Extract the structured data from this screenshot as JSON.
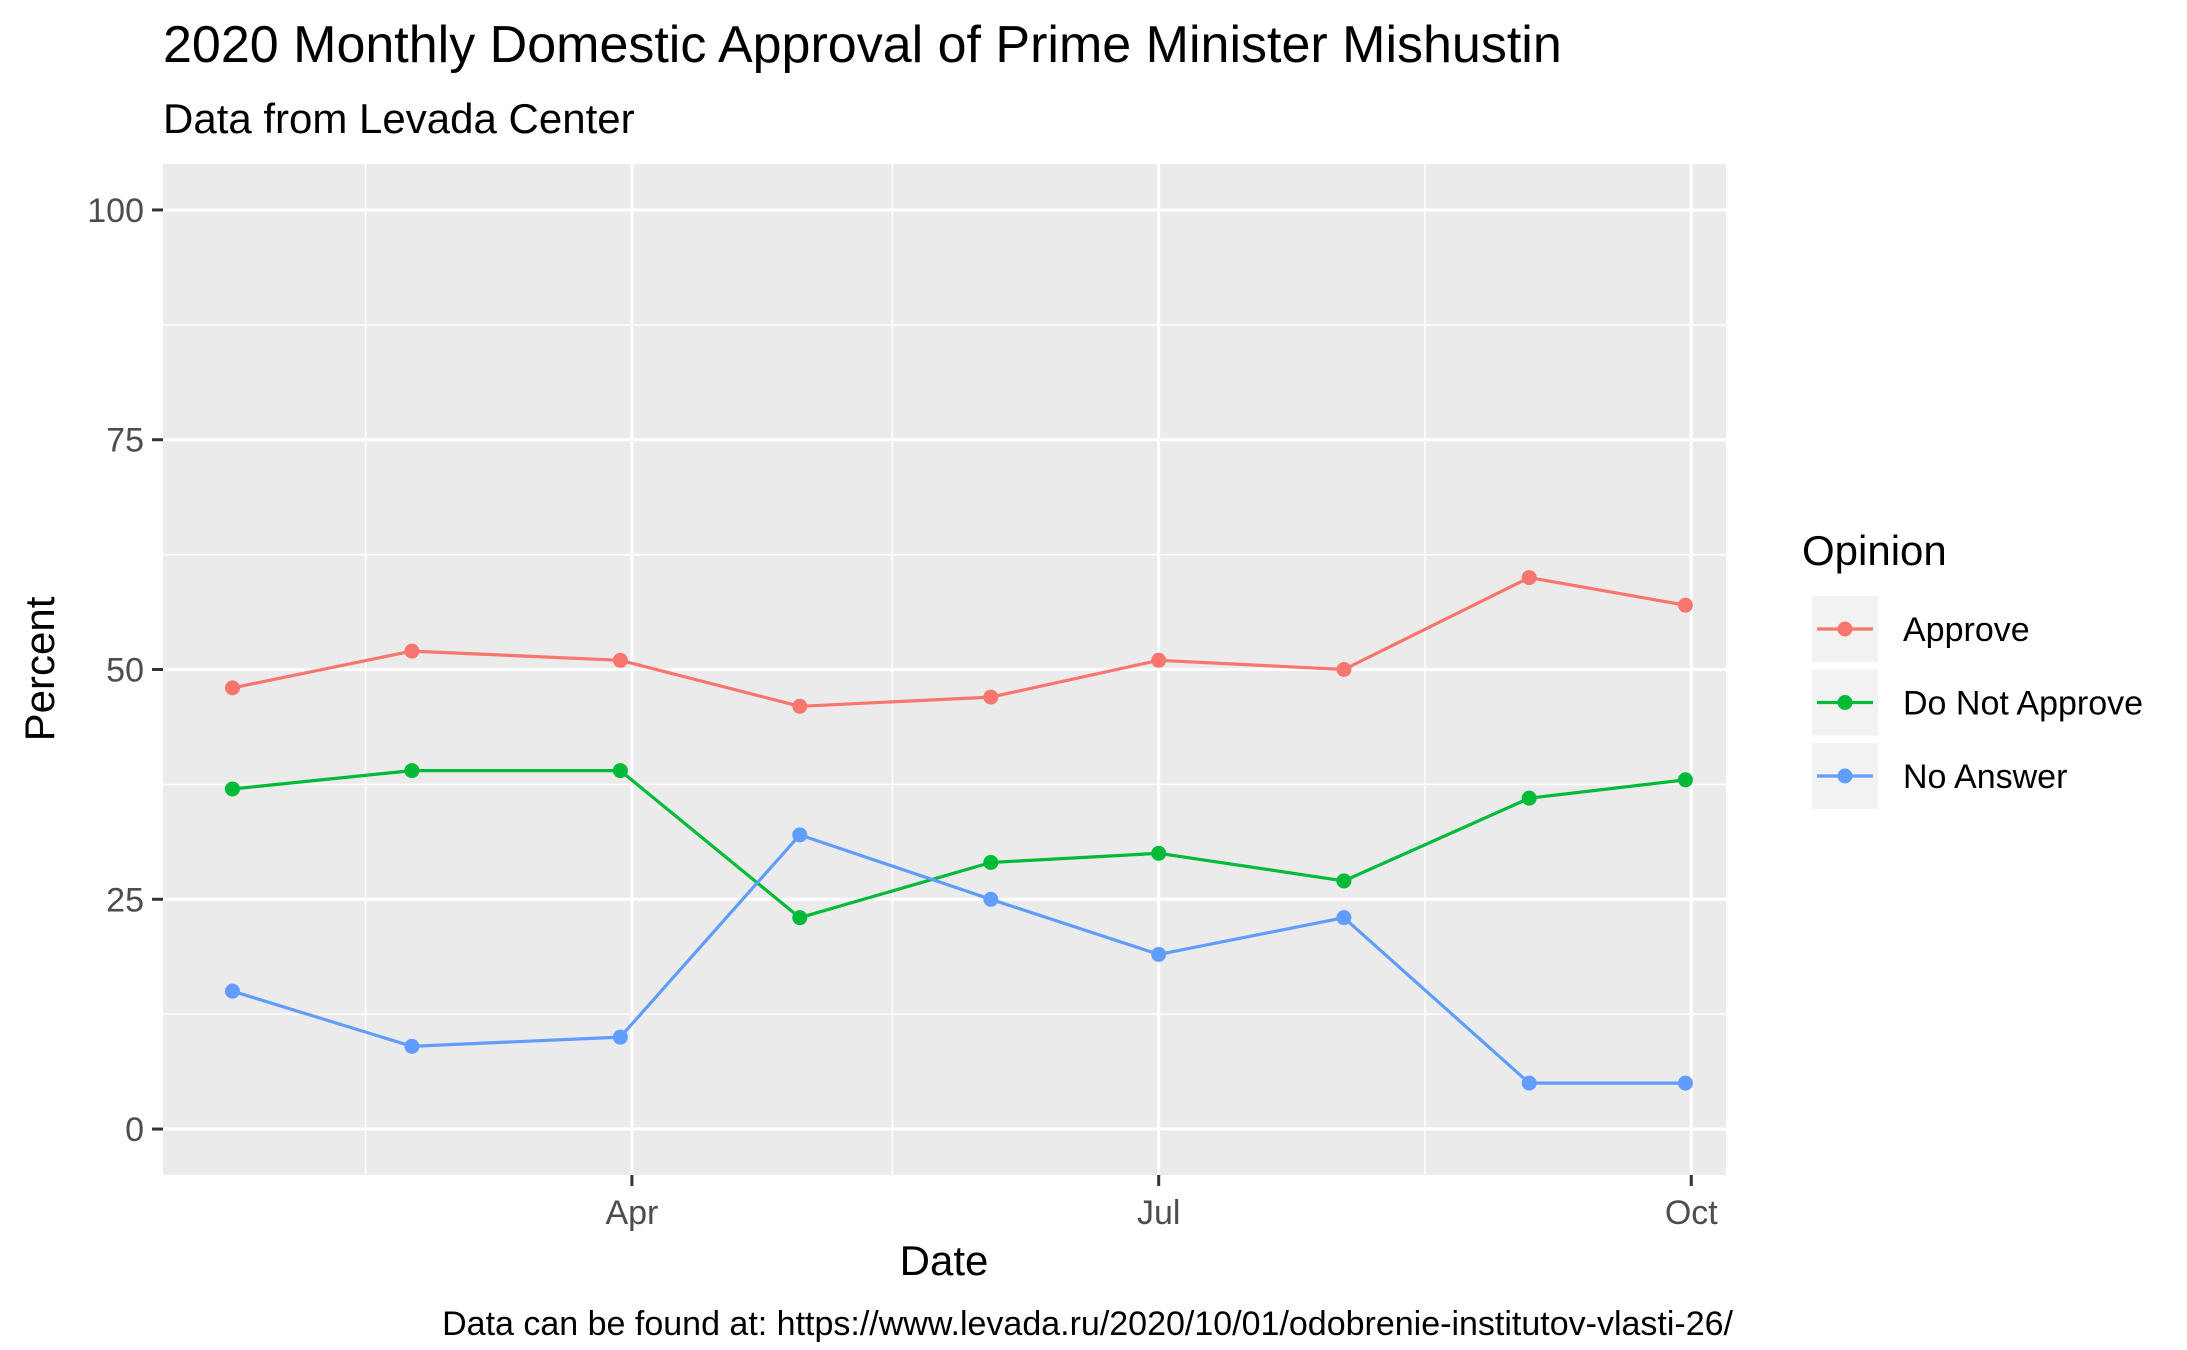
{
  "chart_data": {
    "type": "line",
    "title": "2020 Monthly Domestic Approval of Prime Minister Mishustin",
    "subtitle": "Data from Levada Center",
    "caption": "Data can be found at: https://www.levada.ru/2020/10/01/odobrenie-institutov-vlasti-26/",
    "xlabel": "Date",
    "ylabel": "Percent",
    "x": [
      "2020-01-23",
      "2020-02-23",
      "2020-03-30",
      "2020-04-30",
      "2020-06-02",
      "2020-07-01",
      "2020-08-02",
      "2020-09-03",
      "2020-09-30"
    ],
    "xlim": [
      "2020-01-11",
      "2020-10-07"
    ],
    "ylim": [
      -5,
      105
    ],
    "x_ticks": [
      {
        "date": "2020-04-01",
        "label": "Apr"
      },
      {
        "date": "2020-07-01",
        "label": "Jul"
      },
      {
        "date": "2020-10-01",
        "label": "Oct"
      }
    ],
    "x_minor_ticks": [
      "2020-02-15",
      "2020-05-16",
      "2020-08-16"
    ],
    "y_ticks": [
      0,
      25,
      50,
      75,
      100
    ],
    "y_minor_ticks": [
      12.5,
      37.5,
      62.5,
      87.5
    ],
    "grid": true,
    "legend": {
      "title": "Opinion",
      "placement": "right"
    },
    "series": [
      {
        "name": "Approve",
        "color": "#F8766D",
        "values": [
          48,
          52,
          51,
          46,
          47,
          51,
          50,
          60,
          57
        ]
      },
      {
        "name": "Do Not Approve",
        "color": "#00BA38",
        "values": [
          37,
          39,
          39,
          23,
          29,
          30,
          27,
          36,
          38
        ]
      },
      {
        "name": "No Answer",
        "color": "#619CFF",
        "values": [
          15,
          9,
          10,
          32,
          25,
          19,
          23,
          5,
          5
        ]
      }
    ]
  }
}
